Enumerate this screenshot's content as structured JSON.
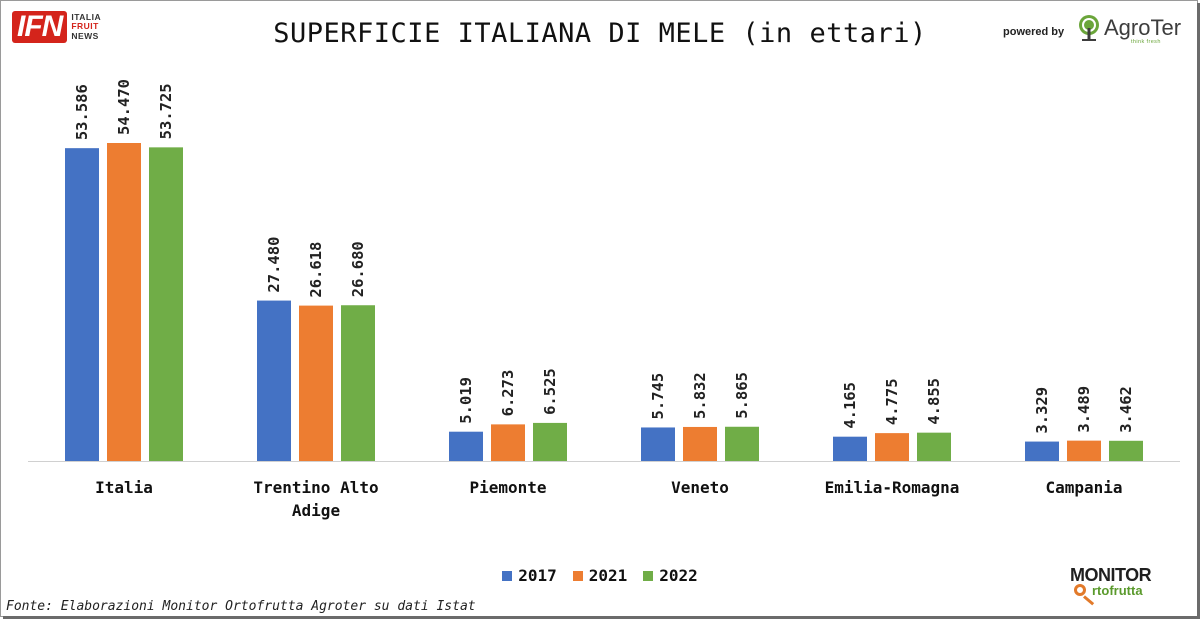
{
  "branding": {
    "ifn_mark": "IFN",
    "ifn_line1": "ITALIA",
    "ifn_line2": "FRUIT",
    "ifn_line3": "NEWS",
    "powered_by": "powered by",
    "agroter": "AgroTer",
    "agroter_tagline": "think fresh",
    "monitor_top": "MONITOR",
    "monitor_bottom": "rtofrutta"
  },
  "source_note": "Fonte: Elaborazioni Monitor Ortofrutta Agroter su dati Istat",
  "colors": {
    "2017": "#4472c4",
    "2021": "#ed7d31",
    "2022": "#70ad47"
  },
  "chart_data": {
    "type": "bar",
    "title": "SUPERFICIE ITALIANA DI MELE (in ettari)",
    "categories": [
      "Italia",
      "Trentino Alto Adige",
      "Piemonte",
      "Veneto",
      "Emilia-Romagna",
      "Campania"
    ],
    "series": [
      {
        "name": "2017",
        "values": [
          53586,
          27480,
          5019,
          5745,
          4165,
          3329
        ],
        "labels": [
          "53.586",
          "27.480",
          "5.019",
          "5.745",
          "4.165",
          "3.329"
        ]
      },
      {
        "name": "2021",
        "values": [
          54470,
          26618,
          6273,
          5832,
          4775,
          3489
        ],
        "labels": [
          "54.470",
          "26.618",
          "6.273",
          "5.832",
          "4.775",
          "3.489"
        ]
      },
      {
        "name": "2022",
        "values": [
          53725,
          26680,
          6525,
          5865,
          4855,
          3462
        ],
        "labels": [
          "53.725",
          "26.680",
          "6.525",
          "5.865",
          "4.855",
          "3.462"
        ]
      }
    ],
    "ylim": [
      0,
      54470
    ],
    "grid": false,
    "legend_position": "bottom"
  }
}
